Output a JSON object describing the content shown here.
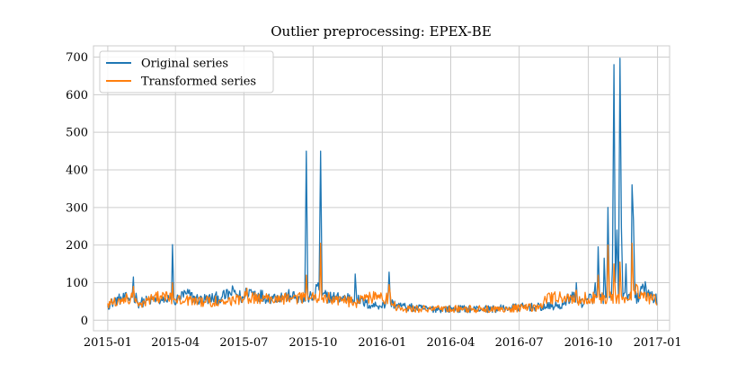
{
  "chart_data": {
    "type": "line",
    "title": "Outlier preprocessing: EPEX-BE",
    "xlabel": "",
    "ylabel": "",
    "x_range": [
      "2014-12-13",
      "2017-01-17"
    ],
    "ylim": [
      -28,
      730
    ],
    "grid": true,
    "legend_position": "top-left",
    "x_ticks": [
      "2015-01",
      "2015-04",
      "2015-07",
      "2015-10",
      "2016-01",
      "2016-04",
      "2016-07",
      "2016-10",
      "2017-01"
    ],
    "y_ticks": [
      0,
      100,
      200,
      300,
      400,
      500,
      600,
      700
    ],
    "series": [
      {
        "name": "Original series",
        "color": "#1f77b4",
        "points": [
          [
            "2015-01-01",
            40
          ],
          [
            "2015-01-15",
            55
          ],
          [
            "2015-02-01",
            60
          ],
          [
            "2015-02-04",
            115
          ],
          [
            "2015-02-10",
            45
          ],
          [
            "2015-03-01",
            55
          ],
          [
            "2015-03-20",
            50
          ],
          [
            "2015-03-28",
            201
          ],
          [
            "2015-03-30",
            50
          ],
          [
            "2015-04-15",
            70
          ],
          [
            "2015-05-01",
            55
          ],
          [
            "2015-06-01",
            60
          ],
          [
            "2015-06-18",
            75
          ],
          [
            "2015-07-01",
            55
          ],
          [
            "2015-07-05",
            80
          ],
          [
            "2015-08-01",
            60
          ],
          [
            "2015-09-01",
            65
          ],
          [
            "2015-09-20",
            50
          ],
          [
            "2015-09-22",
            450
          ],
          [
            "2015-09-24",
            60
          ],
          [
            "2015-10-05",
            95
          ],
          [
            "2015-10-09",
            80
          ],
          [
            "2015-10-11",
            450
          ],
          [
            "2015-10-13",
            65
          ],
          [
            "2015-11-01",
            60
          ],
          [
            "2015-11-26",
            123
          ],
          [
            "2015-11-28",
            55
          ],
          [
            "2015-12-15",
            40
          ],
          [
            "2016-01-05",
            40
          ],
          [
            "2016-01-10",
            128
          ],
          [
            "2016-01-12",
            45
          ],
          [
            "2016-02-01",
            35
          ],
          [
            "2016-03-01",
            30
          ],
          [
            "2016-04-01",
            30
          ],
          [
            "2016-05-01",
            30
          ],
          [
            "2016-06-01",
            30
          ],
          [
            "2016-07-01",
            35
          ],
          [
            "2016-08-01",
            35
          ],
          [
            "2016-09-01",
            40
          ],
          [
            "2016-09-15",
            100
          ],
          [
            "2016-09-18",
            45
          ],
          [
            "2016-10-01",
            50
          ],
          [
            "2016-10-10",
            100
          ],
          [
            "2016-10-14",
            195
          ],
          [
            "2016-10-16",
            60
          ],
          [
            "2016-10-22",
            165
          ],
          [
            "2016-10-24",
            60
          ],
          [
            "2016-10-27",
            300
          ],
          [
            "2016-10-29",
            60
          ],
          [
            "2016-11-02",
            140
          ],
          [
            "2016-11-04",
            680
          ],
          [
            "2016-11-06",
            100
          ],
          [
            "2016-11-08",
            240
          ],
          [
            "2016-11-10",
            60
          ],
          [
            "2016-11-12",
            697
          ],
          [
            "2016-11-14",
            245
          ],
          [
            "2016-11-16",
            60
          ],
          [
            "2016-11-20",
            150
          ],
          [
            "2016-11-28",
            360
          ],
          [
            "2016-11-30",
            265
          ],
          [
            "2016-12-02",
            60
          ],
          [
            "2016-12-10",
            90
          ],
          [
            "2016-12-20",
            80
          ],
          [
            "2016-12-31",
            40
          ]
        ]
      },
      {
        "name": "Transformed series",
        "color": "#ff7f0e",
        "points": [
          [
            "2015-01-01",
            45
          ],
          [
            "2015-01-20",
            50
          ],
          [
            "2015-02-04",
            90
          ],
          [
            "2015-02-10",
            45
          ],
          [
            "2015-03-01",
            55
          ],
          [
            "2015-03-28",
            100
          ],
          [
            "2015-04-01",
            55
          ],
          [
            "2015-05-01",
            50
          ],
          [
            "2015-06-01",
            50
          ],
          [
            "2015-07-01",
            55
          ],
          [
            "2015-07-05",
            85
          ],
          [
            "2015-08-01",
            55
          ],
          [
            "2015-09-01",
            60
          ],
          [
            "2015-09-22",
            120
          ],
          [
            "2015-09-25",
            55
          ],
          [
            "2015-10-11",
            205
          ],
          [
            "2015-10-14",
            60
          ],
          [
            "2015-11-01",
            55
          ],
          [
            "2015-12-01",
            45
          ],
          [
            "2016-01-10",
            95
          ],
          [
            "2016-01-13",
            40
          ],
          [
            "2016-02-01",
            30
          ],
          [
            "2016-04-01",
            30
          ],
          [
            "2016-06-01",
            30
          ],
          [
            "2016-08-01",
            35
          ],
          [
            "2016-09-15",
            80
          ],
          [
            "2016-09-18",
            40
          ],
          [
            "2016-10-14",
            120
          ],
          [
            "2016-10-16",
            55
          ],
          [
            "2016-10-27",
            200
          ],
          [
            "2016-10-29",
            65
          ],
          [
            "2016-11-04",
            150
          ],
          [
            "2016-11-06",
            70
          ],
          [
            "2016-11-12",
            155
          ],
          [
            "2016-11-14",
            65
          ],
          [
            "2016-11-28",
            205
          ],
          [
            "2016-11-30",
            80
          ],
          [
            "2016-12-10",
            75
          ],
          [
            "2016-12-31",
            40
          ]
        ]
      }
    ]
  }
}
